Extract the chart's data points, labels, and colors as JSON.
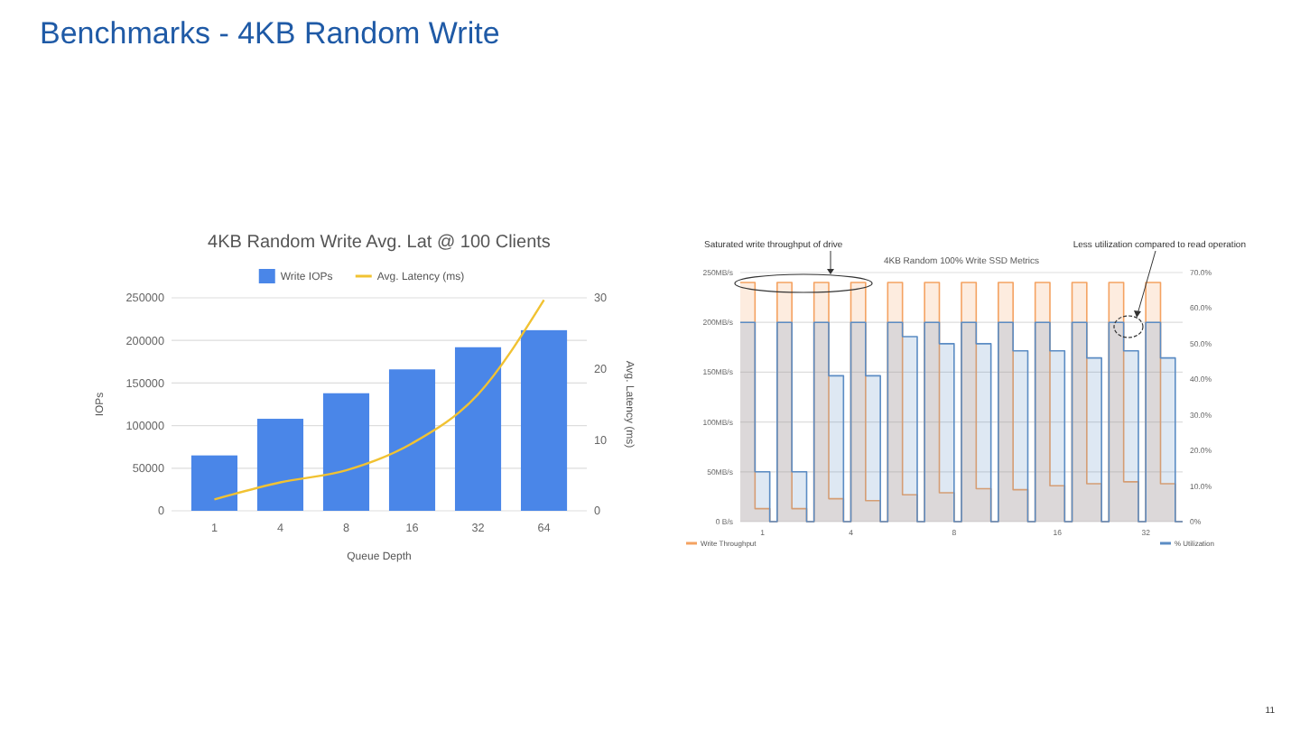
{
  "chart_data": [
    {
      "type": "bar",
      "title": "4KB Random Write Avg. Lat @ 100 Clients",
      "annotations": [
        "Benchmarks - 4KB Random Write"
      ],
      "categories": [
        "1",
        "4",
        "8",
        "16",
        "32",
        "64"
      ],
      "xlabel": "Queue Depth",
      "ylabel": "IOPs",
      "y2label": "Avg. Latency (ms)",
      "series": [
        {
          "name": "Write IOPs",
          "color": "#4a86e8",
          "values": [
            65000,
            108000,
            138000,
            166000,
            192000,
            212000
          ]
        },
        {
          "name": "Avg. Latency (ms)",
          "type": "line",
          "axis": "y2",
          "color": "#f1c232",
          "values": [
            1.6,
            4,
            5.7,
            9.5,
            16.4,
            29.7
          ]
        }
      ],
      "ylim": [
        0,
        250000
      ],
      "yticks": [
        0,
        50000,
        100000,
        150000,
        200000,
        250000
      ],
      "y2lim": [
        0,
        30
      ],
      "y2ticks": [
        0,
        10,
        20,
        30
      ],
      "grid": "y",
      "legend": "top"
    },
    {
      "type": "step",
      "title": "4KB Random 100% Write SSD Metrics",
      "annotations": [
        "Saturated write throughput of drive",
        "Less utilization compared to read operation",
        "11"
      ],
      "categories": [
        null,
        null,
        null,
        "1",
        null,
        null,
        null,
        null,
        null,
        null,
        null,
        null,
        null,
        null,
        null,
        "4",
        null,
        null,
        null,
        null,
        null,
        null,
        null,
        null,
        null,
        null,
        null,
        null,
        null,
        "8",
        null,
        null,
        null,
        null,
        null,
        null,
        null,
        null,
        null,
        null,
        null,
        null,
        null,
        "16",
        null,
        null,
        null,
        null,
        null,
        null,
        null,
        null,
        null,
        null,
        null,
        "32",
        null,
        null,
        null,
        null,
        null
      ],
      "series": [
        {
          "name": "Write Throughput",
          "color": "#f4a261",
          "values": [
            240,
            240,
            13,
            13,
            0,
            240,
            240,
            13,
            13,
            0,
            240,
            240,
            23,
            23,
            0,
            240,
            240,
            21,
            21,
            0,
            240,
            240,
            27,
            27,
            0,
            240,
            240,
            29,
            29,
            0,
            240,
            240,
            33,
            33,
            0,
            240,
            240,
            32,
            32,
            0,
            240,
            240,
            36,
            36,
            0,
            240,
            240,
            38,
            38,
            0,
            240,
            240,
            40,
            40,
            0,
            240,
            240,
            38,
            38,
            0,
            0
          ]
        },
        {
          "name": "% Utilization",
          "axis": "y2",
          "color": "#5b8cc4",
          "values": [
            56,
            56,
            14,
            14,
            0,
            56,
            56,
            14,
            14,
            0,
            56,
            56,
            41,
            41,
            0,
            56,
            56,
            41,
            41,
            0,
            56,
            56,
            52,
            52,
            0,
            56,
            56,
            50,
            50,
            0,
            56,
            56,
            50,
            50,
            0,
            56,
            56,
            48,
            48,
            0,
            56,
            56,
            48,
            48,
            0,
            56,
            56,
            46,
            46,
            0,
            56,
            56,
            48,
            48,
            0,
            56,
            56,
            46,
            46,
            0,
            0
          ]
        }
      ],
      "ylim": [
        0,
        250
      ],
      "yticks": [
        {
          "value": 0,
          "label": "0 B/s"
        },
        {
          "value": 50,
          "label": "50MB/s"
        },
        {
          "value": 100,
          "label": "100MB/s"
        },
        {
          "value": 150,
          "label": "150MB/s"
        },
        {
          "value": 200,
          "label": "200MB/s"
        },
        {
          "value": 250,
          "label": "250MB/s"
        }
      ],
      "y2lim": [
        0,
        70
      ],
      "y2ticks": [
        {
          "value": 0,
          "label": "0%"
        },
        {
          "value": 10,
          "label": "10.0%"
        },
        {
          "value": 20,
          "label": "20.0%"
        },
        {
          "value": 30,
          "label": "30.0%"
        },
        {
          "value": 40,
          "label": "40.0%"
        },
        {
          "value": 50,
          "label": "50.0%"
        },
        {
          "value": 60,
          "label": "60.0%"
        },
        {
          "value": 70,
          "label": "70.0%"
        }
      ],
      "grid": "y",
      "legend": "bottom"
    }
  ]
}
